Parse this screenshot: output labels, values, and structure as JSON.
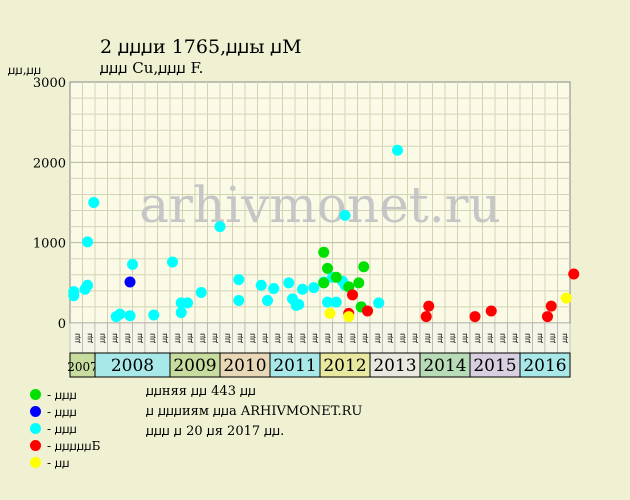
{
  "header": {
    "title": "2 ꙡꙡꙡи 1765,ꙡꙡы ꙡM",
    "subtitle": "ꙡꙡꙡ Cu,ꙡꙡꙡ F.",
    "ylabel": "ꙡꙡ,ꙡꙡ",
    "watermark": "arhivmonet.ru"
  },
  "legend": [
    {
      "label": "- ꙡꙡꙡ",
      "color": "#00e000"
    },
    {
      "label": "- ꙡꙡꙡ",
      "color": "#0000ff"
    },
    {
      "label": "- ꙡꙡꙡ",
      "color": "#00ffff"
    },
    {
      "label": "- ꙡꙡꙡꙡꙡБ",
      "color": "#ff0000"
    },
    {
      "label": "- ꙡꙡ",
      "color": "#ffff00"
    }
  ],
  "note": {
    "line1": "ꙡꙡняя ꙡꙡ 443 ꙡꙡ",
    "line2": "ꙡ ꙡꙡꙡиям ꙡꙡa ARHIVMONET.RU",
    "line3": "ꙡꙡꙡ ꙡ 20 ꙡя 2017 ꙡꙡ."
  },
  "chart_data": {
    "type": "scatter",
    "ylim": [
      0,
      3000
    ],
    "yticks": [
      0,
      1000,
      2000,
      3000
    ],
    "grid": true,
    "months_label": "ꙡꙡ",
    "years": [
      {
        "label": "2007",
        "color": "#c8dca0",
        "months": 2
      },
      {
        "label": "2008",
        "color": "#a8e8e8",
        "months": 6
      },
      {
        "label": "2009",
        "color": "#c8dca0",
        "months": 4
      },
      {
        "label": "2010",
        "color": "#e8d8b8",
        "months": 4
      },
      {
        "label": "2011",
        "color": "#a8e8e8",
        "months": 4
      },
      {
        "label": "2012",
        "color": "#e8e8a0",
        "months": 4
      },
      {
        "label": "2013",
        "color": "#e8e8e0",
        "months": 4
      },
      {
        "label": "2014",
        "color": "#b8dcb8",
        "months": 4
      },
      {
        "label": "2015",
        "color": "#d8d0e0",
        "months": 4
      },
      {
        "label": "2016",
        "color": "#a8e8e8",
        "months": 4
      }
    ],
    "series": [
      {
        "color": "#00ffff",
        "points": [
          [
            0.3,
            390
          ],
          [
            0.3,
            340
          ],
          [
            1.2,
            420
          ],
          [
            1.4,
            470
          ],
          [
            1.4,
            1010
          ],
          [
            1.9,
            1500
          ],
          [
            3.7,
            80
          ],
          [
            4.0,
            110
          ],
          [
            4.8,
            90
          ],
          [
            5.0,
            730
          ],
          [
            6.7,
            100
          ],
          [
            8.2,
            760
          ],
          [
            8.9,
            130
          ],
          [
            8.9,
            250
          ],
          [
            9.4,
            250
          ],
          [
            10.5,
            380
          ],
          [
            12.0,
            1200
          ],
          [
            13.5,
            540
          ],
          [
            13.5,
            280
          ],
          [
            15.3,
            470
          ],
          [
            15.8,
            280
          ],
          [
            16.3,
            430
          ],
          [
            17.5,
            500
          ],
          [
            17.8,
            300
          ],
          [
            18.1,
            220
          ],
          [
            18.3,
            230
          ],
          [
            18.6,
            420
          ],
          [
            19.5,
            440
          ],
          [
            20.3,
            510
          ],
          [
            20.6,
            260
          ],
          [
            21.0,
            570
          ],
          [
            21.3,
            260
          ],
          [
            21.8,
            520
          ],
          [
            22.0,
            1340
          ],
          [
            22.0,
            470
          ],
          [
            23.3,
            200
          ],
          [
            24.7,
            250
          ],
          [
            26.2,
            2150
          ]
        ]
      },
      {
        "color": "#0000ff",
        "points": [
          [
            4.8,
            510
          ]
        ]
      },
      {
        "color": "#00e000",
        "points": [
          [
            20.3,
            880
          ],
          [
            20.3,
            500
          ],
          [
            20.6,
            680
          ],
          [
            21.3,
            570
          ],
          [
            22.3,
            450
          ],
          [
            23.1,
            500
          ],
          [
            23.3,
            200
          ],
          [
            23.5,
            700
          ]
        ]
      },
      {
        "color": "#ff0000",
        "points": [
          [
            22.3,
            120
          ],
          [
            22.6,
            350
          ],
          [
            23.8,
            150
          ],
          [
            28.5,
            80
          ],
          [
            28.7,
            210
          ],
          [
            32.4,
            80
          ],
          [
            33.7,
            150
          ],
          [
            38.2,
            80
          ],
          [
            38.5,
            210
          ],
          [
            40.3,
            610
          ]
        ]
      },
      {
        "color": "#ffff00",
        "points": [
          [
            20.8,
            120
          ],
          [
            22.3,
            80
          ],
          [
            39.7,
            310
          ]
        ]
      }
    ]
  }
}
